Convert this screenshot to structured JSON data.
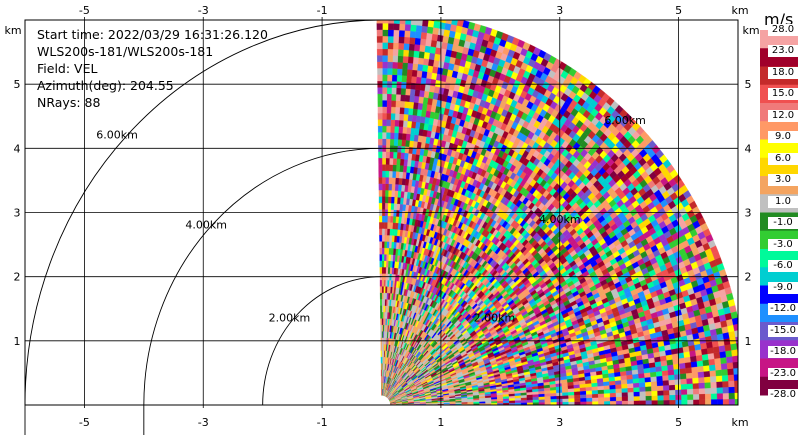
{
  "info": {
    "start_time": "Start time: 2022/03/29 16:31:26.120",
    "radar": "WLS200s-181/WLS200s-181",
    "field": "Field: VEL",
    "azimuth": "Azimuth(deg): 204.55",
    "nrays": "NRays: 88"
  },
  "colorbar": {
    "unit": "m/s",
    "labels": [
      "28.0",
      "23.0",
      "18.0",
      "15.0",
      "12.0",
      "9.0",
      "6.0",
      "3.0",
      "1.0",
      "-1.0",
      "-3.0",
      "-6.0",
      "-9.0",
      "-12.0",
      "-15.0",
      "-18.0",
      "-23.0",
      "-28.0"
    ],
    "colors": [
      "#f5a3a3",
      "#a0002a",
      "#c42a2a",
      "#f05050",
      "#f07a7a",
      "#ff9966",
      "#ffff00",
      "#ffd700",
      "#f4a460",
      "#c0c0c0",
      "#228b22",
      "#32cd32",
      "#00fa9a",
      "#00ced1",
      "#0000ff",
      "#1e90ff",
      "#6a5acd",
      "#9932cc",
      "#c71585",
      "#800040"
    ]
  },
  "chart_data": {
    "type": "heatmap",
    "field": "VEL",
    "xlabel": "km",
    "ylabel": "km",
    "x_ticks": [
      -5,
      -3,
      -1,
      1,
      3,
      5
    ],
    "y_ticks": [
      1,
      2,
      3,
      4,
      5
    ],
    "xlim": [
      -6,
      6
    ],
    "ylim": [
      0,
      6
    ],
    "range_rings_km": [
      2,
      4,
      6
    ],
    "range_ring_labels": [
      "2.00km",
      "4.00km",
      "6.00km"
    ],
    "data_extent_km": 6.1,
    "data_x_start_km": 0.0,
    "grid": true
  }
}
